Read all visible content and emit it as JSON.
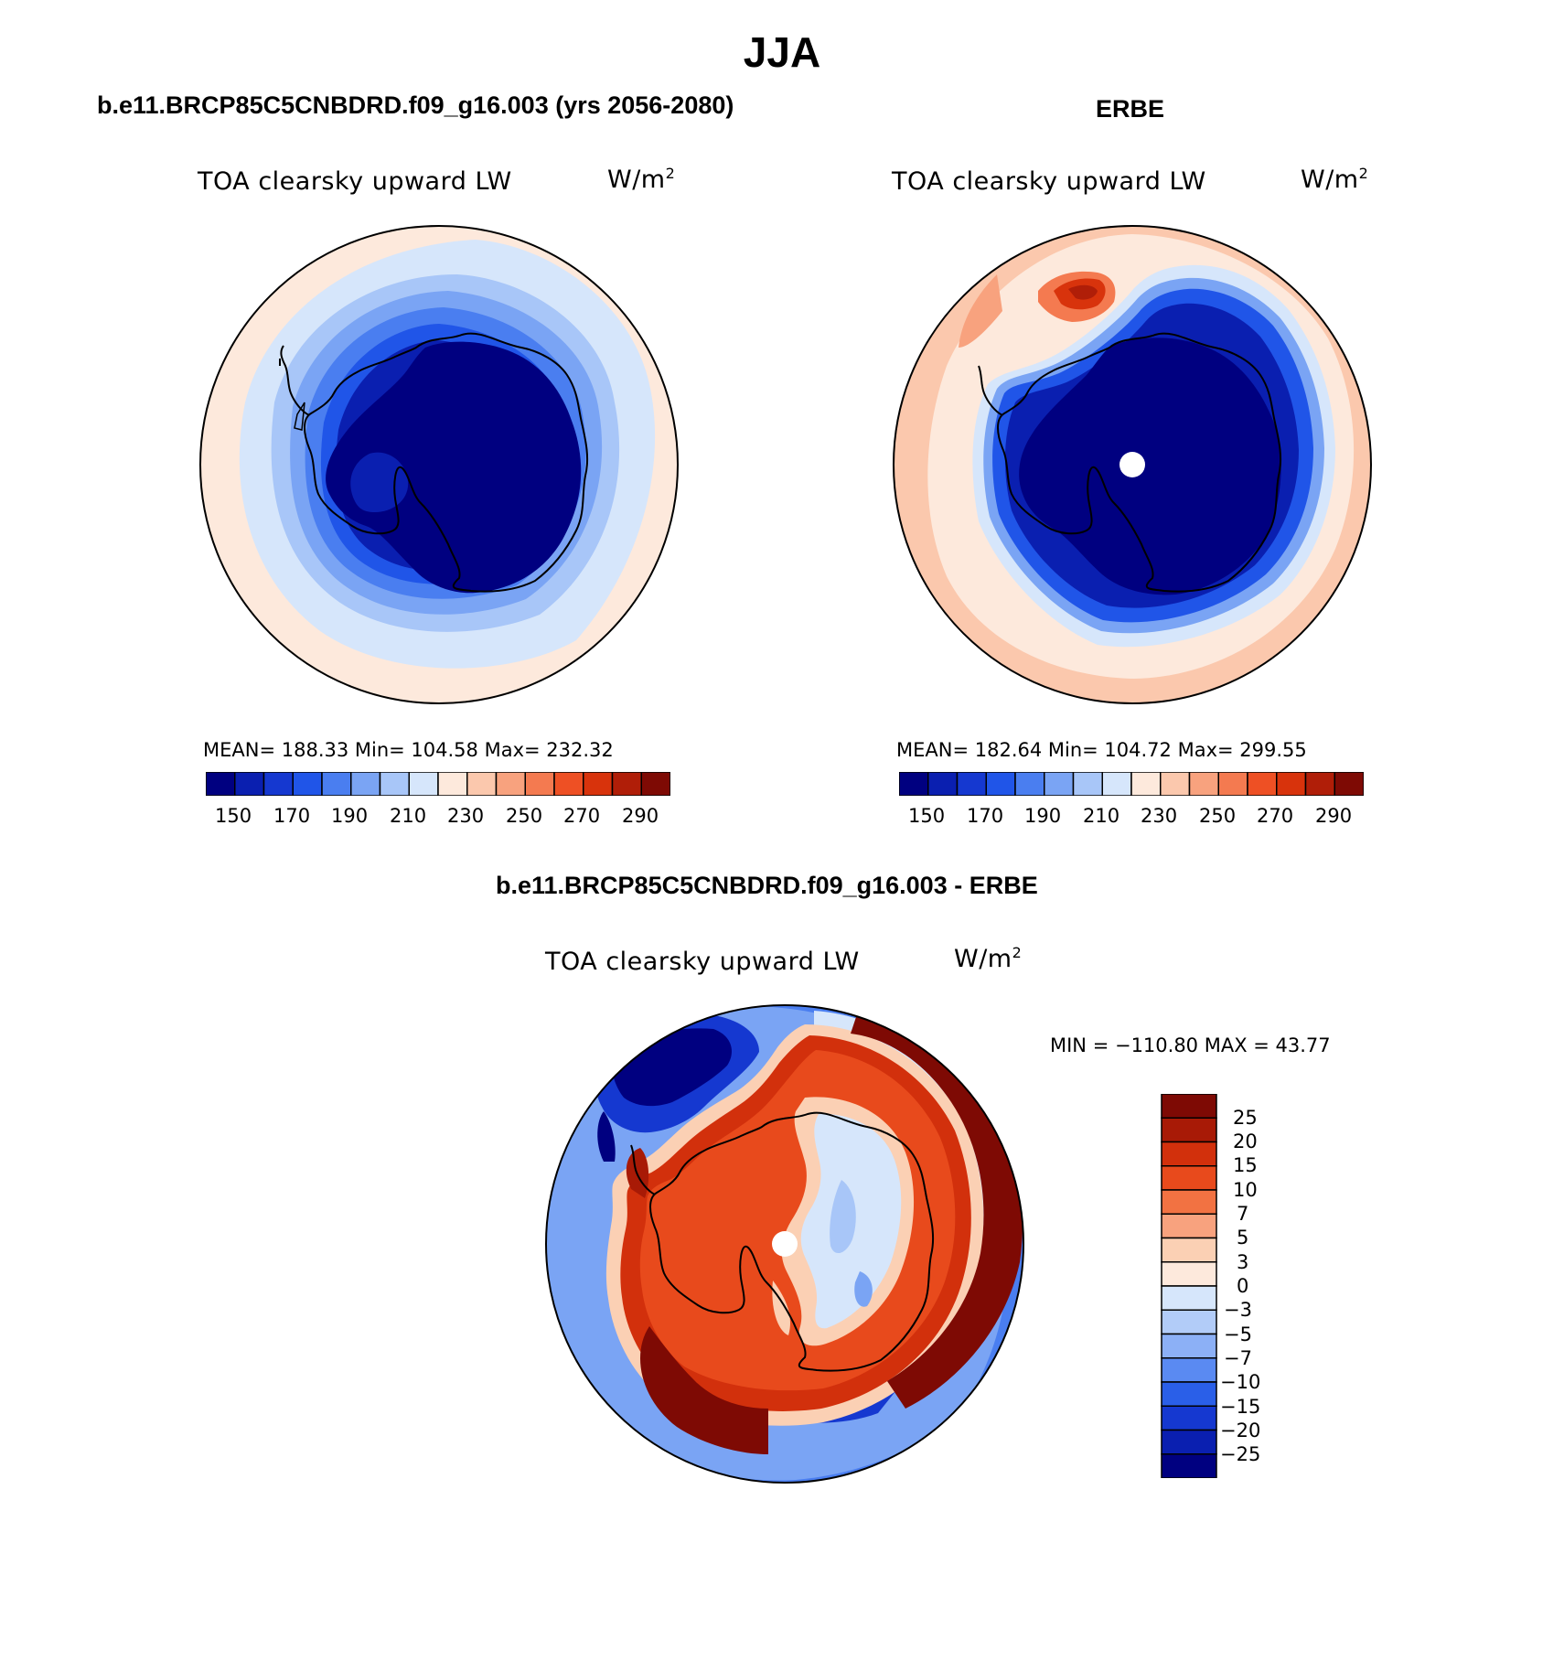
{
  "title": "JJA",
  "panels": [
    {
      "title": "b.e11.BRCP85C5CNBDRD.f09_g16.003 (yrs 2056-2080)",
      "left_label": "TOA clearsky upward LW",
      "units_base": "W/m",
      "units_exp": "2",
      "stats": "MEAN= 188.33   Min= 104.58   Max= 232.32"
    },
    {
      "title": "ERBE",
      "left_label": "TOA clearsky upward LW",
      "units_base": "W/m",
      "units_exp": "2",
      "stats": "MEAN= 182.64   Min= 104.72   Max= 299.55"
    },
    {
      "title": "b.e11.BRCP85C5CNBDRD.f09_g16.003 - ERBE",
      "left_label": "TOA clearsky upward LW",
      "units_base": "W/m",
      "units_exp": "2",
      "stats": "MIN = −110.80 MAX =   43.77"
    }
  ],
  "colorbar_abs": {
    "tick_labels": [
      "150",
      "170",
      "190",
      "210",
      "230",
      "250",
      "270",
      "290"
    ],
    "colors": [
      "#000080",
      "#0a1fb0",
      "#1538d0",
      "#2055e8",
      "#4a7ef0",
      "#7aa4f4",
      "#a8c6f8",
      "#d6e6fb",
      "#fde9dc",
      "#fbc8ad",
      "#f8a27e",
      "#f47a50",
      "#ee5024",
      "#d8330c",
      "#b01e08",
      "#7e0a04"
    ]
  },
  "colorbar_diff": {
    "tick_labels": [
      "25",
      "20",
      "15",
      "10",
      "7",
      "5",
      "3",
      "0",
      "−3",
      "−5",
      "−7",
      "−10",
      "−15",
      "−20",
      "−25"
    ],
    "colors": [
      "#7e0a04",
      "#a81a06",
      "#d2300c",
      "#e84a1c",
      "#f27242",
      "#f8a27e",
      "#fbd0b4",
      "#fde9dc",
      "#d6e6fb",
      "#b2ccf8",
      "#8cb0f6",
      "#5a8af2",
      "#2a5fe8",
      "#1538d0",
      "#0a1fb0",
      "#000080"
    ]
  }
}
